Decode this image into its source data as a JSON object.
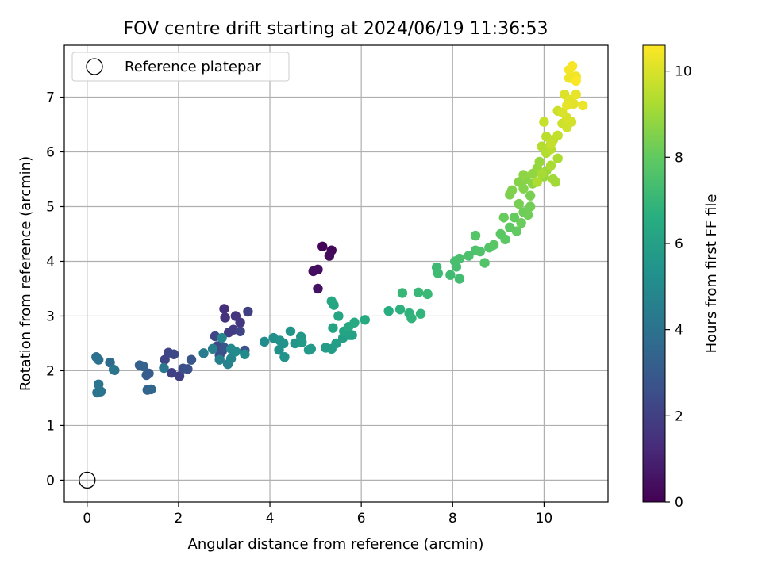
{
  "chart_data": {
    "type": "scatter",
    "title": "FOV centre drift starting at 2024/06/19 11:36:53",
    "xlabel": "Angular distance from reference (arcmin)",
    "ylabel": "Rotation from reference (arcmin)",
    "xlim": [
      -0.5,
      11.4
    ],
    "ylim": [
      -0.4,
      7.95
    ],
    "xticks": [
      0,
      2,
      4,
      6,
      8,
      10
    ],
    "yticks": [
      0,
      1,
      2,
      3,
      4,
      5,
      6,
      7
    ],
    "grid": true,
    "legend": {
      "placement": "top-left",
      "entries": [
        "Reference platepar"
      ]
    },
    "reference_point": {
      "x": 0,
      "y": 0
    },
    "colorbar": {
      "label": "Hours from first FF file",
      "range": [
        0,
        10.6
      ],
      "ticks": [
        0,
        2,
        4,
        6,
        8,
        10
      ],
      "colormap": "viridis"
    },
    "series": [
      {
        "points": [
          [
            5.15,
            4.27,
            0.1
          ],
          [
            5.35,
            4.2,
            0.2
          ],
          [
            5.3,
            4.1,
            0.3
          ],
          [
            4.95,
            3.82,
            0.35
          ],
          [
            5.05,
            3.85,
            0.4
          ],
          [
            5.05,
            3.5,
            0.5
          ],
          [
            3.0,
            3.13,
            1.4
          ],
          [
            3.02,
            2.97,
            1.5
          ],
          [
            3.25,
            3.0,
            1.6
          ],
          [
            3.35,
            2.88,
            1.7
          ],
          [
            3.2,
            2.75,
            1.8
          ],
          [
            3.1,
            2.7,
            1.9
          ],
          [
            3.52,
            3.08,
            2.0
          ],
          [
            3.35,
            2.72,
            2.1
          ],
          [
            2.8,
            2.63,
            2.2
          ],
          [
            2.85,
            2.45,
            2.3
          ],
          [
            2.95,
            2.35,
            2.4
          ],
          [
            2.9,
            2.28,
            2.5
          ],
          [
            3.45,
            2.37,
            2.6
          ],
          [
            3.0,
            2.42,
            2.7
          ],
          [
            2.02,
            1.9,
            2.0
          ],
          [
            1.85,
            1.96,
            2.05
          ],
          [
            1.7,
            2.2,
            2.1
          ],
          [
            1.78,
            2.33,
            2.2
          ],
          [
            1.9,
            2.3,
            2.3
          ],
          [
            2.1,
            2.04,
            2.5
          ],
          [
            2.2,
            2.03,
            2.6
          ],
          [
            2.28,
            2.2,
            2.8
          ],
          [
            1.35,
            1.95,
            3.0
          ],
          [
            1.3,
            1.92,
            3.1
          ],
          [
            1.15,
            2.1,
            3.2
          ],
          [
            1.23,
            2.08,
            3.3
          ],
          [
            1.32,
            1.65,
            3.4
          ],
          [
            1.4,
            1.66,
            3.5
          ],
          [
            0.5,
            2.15,
            3.7
          ],
          [
            0.6,
            2.01,
            3.8
          ],
          [
            0.2,
            2.25,
            3.9
          ],
          [
            0.25,
            2.2,
            3.95
          ],
          [
            0.22,
            1.6,
            4.0
          ],
          [
            0.3,
            1.62,
            4.05
          ],
          [
            0.25,
            1.75,
            4.1
          ],
          [
            0.58,
            2.02,
            4.15
          ],
          [
            1.68,
            2.05,
            4.2
          ],
          [
            2.55,
            2.32,
            4.4
          ],
          [
            2.75,
            2.4,
            4.5
          ],
          [
            2.9,
            2.2,
            4.6
          ],
          [
            3.08,
            2.12,
            4.7
          ],
          [
            3.15,
            2.22,
            4.8
          ],
          [
            2.95,
            2.6,
            4.85
          ],
          [
            3.15,
            2.4,
            4.9
          ],
          [
            3.45,
            2.3,
            5.0
          ],
          [
            3.25,
            2.35,
            5.05
          ],
          [
            3.88,
            2.53,
            5.1
          ],
          [
            4.08,
            2.6,
            5.2
          ],
          [
            4.2,
            2.38,
            5.3
          ],
          [
            4.3,
            2.5,
            5.35
          ],
          [
            4.22,
            2.55,
            5.4
          ],
          [
            4.32,
            2.25,
            5.45
          ],
          [
            4.45,
            2.72,
            5.5
          ],
          [
            4.55,
            2.5,
            5.55
          ],
          [
            4.68,
            2.62,
            5.6
          ],
          [
            4.7,
            2.52,
            5.65
          ],
          [
            4.85,
            2.38,
            5.7
          ],
          [
            4.9,
            2.4,
            5.75
          ],
          [
            5.22,
            2.42,
            5.8
          ],
          [
            5.35,
            2.4,
            5.85
          ],
          [
            5.45,
            2.5,
            5.9
          ],
          [
            5.6,
            2.6,
            5.95
          ],
          [
            5.75,
            2.65,
            6.0
          ],
          [
            5.8,
            2.65,
            6.05
          ],
          [
            5.62,
            2.72,
            6.1
          ],
          [
            5.38,
            2.78,
            6.15
          ],
          [
            5.5,
            3.0,
            6.2
          ],
          [
            5.35,
            3.27,
            6.25
          ],
          [
            5.4,
            3.2,
            6.3
          ],
          [
            5.72,
            2.8,
            6.35
          ],
          [
            5.85,
            2.88,
            6.4
          ],
          [
            6.08,
            2.93,
            6.45
          ],
          [
            6.6,
            3.09,
            6.6
          ],
          [
            6.85,
            3.12,
            6.7
          ],
          [
            7.05,
            3.05,
            6.8
          ],
          [
            7.1,
            2.96,
            6.85
          ],
          [
            7.3,
            3.04,
            6.9
          ],
          [
            6.9,
            3.42,
            7.0
          ],
          [
            7.25,
            3.43,
            7.05
          ],
          [
            7.45,
            3.4,
            7.1
          ],
          [
            7.65,
            3.89,
            7.15
          ],
          [
            7.68,
            3.78,
            7.2
          ],
          [
            7.95,
            3.75,
            7.25
          ],
          [
            8.15,
            3.68,
            7.3
          ],
          [
            8.08,
            3.9,
            7.35
          ],
          [
            8.05,
            4.0,
            7.4
          ],
          [
            8.15,
            4.05,
            7.45
          ],
          [
            8.35,
            4.1,
            7.5
          ],
          [
            8.5,
            4.2,
            7.55
          ],
          [
            8.6,
            4.18,
            7.6
          ],
          [
            8.7,
            3.97,
            7.65
          ],
          [
            8.8,
            4.25,
            7.7
          ],
          [
            8.5,
            4.47,
            7.75
          ],
          [
            8.9,
            4.3,
            7.8
          ],
          [
            9.05,
            4.5,
            7.85
          ],
          [
            9.15,
            4.4,
            7.9
          ],
          [
            9.25,
            4.62,
            7.95
          ],
          [
            9.4,
            4.55,
            8.0
          ],
          [
            9.35,
            4.8,
            8.05
          ],
          [
            9.12,
            4.8,
            8.1
          ],
          [
            9.5,
            4.7,
            8.15
          ],
          [
            9.55,
            4.9,
            8.2
          ],
          [
            9.65,
            4.85,
            8.25
          ],
          [
            9.7,
            5.0,
            8.3
          ],
          [
            9.45,
            5.05,
            8.35
          ],
          [
            9.7,
            5.2,
            8.4
          ],
          [
            9.25,
            5.22,
            8.45
          ],
          [
            9.3,
            5.3,
            8.5
          ],
          [
            9.55,
            5.33,
            8.55
          ],
          [
            9.45,
            5.45,
            8.6
          ],
          [
            9.6,
            5.5,
            8.65
          ],
          [
            9.75,
            5.42,
            8.7
          ],
          [
            9.55,
            5.58,
            8.75
          ],
          [
            9.75,
            5.6,
            8.8
          ],
          [
            9.85,
            5.7,
            8.85
          ],
          [
            9.9,
            5.82,
            8.9
          ],
          [
            10.0,
            5.55,
            8.95
          ],
          [
            10.05,
            5.65,
            9.0
          ],
          [
            10.2,
            5.5,
            9.05
          ],
          [
            10.25,
            5.45,
            9.1
          ],
          [
            9.95,
            5.6,
            9.15
          ],
          [
            10.15,
            5.75,
            9.2
          ],
          [
            10.3,
            5.88,
            9.25
          ],
          [
            9.85,
            5.45,
            9.3
          ],
          [
            10.05,
            5.98,
            9.35
          ],
          [
            9.95,
            6.1,
            9.4
          ],
          [
            10.15,
            6.05,
            9.45
          ],
          [
            10.05,
            6.28,
            9.5
          ],
          [
            10.2,
            6.22,
            9.55
          ],
          [
            10.3,
            6.3,
            9.6
          ],
          [
            10.15,
            6.15,
            9.65
          ],
          [
            10.0,
            6.55,
            9.7
          ],
          [
            10.3,
            6.75,
            9.75
          ],
          [
            10.4,
            6.52,
            9.8
          ],
          [
            10.5,
            6.45,
            9.85
          ],
          [
            10.6,
            6.55,
            9.9
          ],
          [
            10.5,
            6.62,
            9.95
          ],
          [
            10.4,
            6.72,
            10.0
          ],
          [
            10.45,
            7.05,
            10.05
          ],
          [
            10.55,
            6.95,
            10.1
          ],
          [
            10.65,
            6.88,
            10.15
          ],
          [
            10.5,
            6.85,
            10.2
          ],
          [
            10.7,
            7.05,
            10.25
          ],
          [
            10.85,
            6.85,
            10.3
          ],
          [
            10.55,
            7.35,
            10.35
          ],
          [
            10.7,
            7.38,
            10.4
          ],
          [
            10.55,
            7.5,
            10.45
          ],
          [
            10.62,
            7.57,
            10.5
          ],
          [
            10.7,
            7.3,
            10.55
          ]
        ]
      }
    ]
  }
}
